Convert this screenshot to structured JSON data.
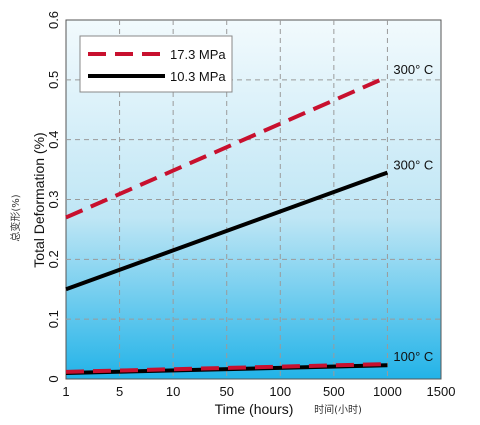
{
  "chart_data": {
    "type": "line",
    "xlabel": "Time (hours)",
    "xlabel_cn": "时间(小时)",
    "ylabel": "Total Deformation (%)",
    "ylabel_cn": "总变形(%)",
    "x_ticks": [
      "1",
      "5",
      "10",
      "50",
      "100",
      "500",
      "1000",
      "1500"
    ],
    "y_ticks": [
      "0",
      "0.1",
      "0.2",
      "0.3",
      "0.4",
      "0.5",
      "0.6"
    ],
    "ylim": [
      0,
      0.6
    ],
    "grid": true,
    "legend_position": "top-left",
    "legend": [
      {
        "label": "17.3 MPa",
        "color": "#c8102e",
        "style": "dashed"
      },
      {
        "label": "10.3 MPa",
        "color": "#000000",
        "style": "solid"
      }
    ],
    "series": [
      {
        "name": "17.3 MPa",
        "temperature": "300° C",
        "color": "#c8102e",
        "style": "dashed",
        "x": [
          "1",
          "1000"
        ],
        "y": [
          0.27,
          0.505
        ]
      },
      {
        "name": "10.3 MPa",
        "temperature": "300° C",
        "color": "#000000",
        "style": "solid",
        "x": [
          "1",
          "1000"
        ],
        "y": [
          0.15,
          0.345
        ]
      },
      {
        "name": "10.3 MPa",
        "temperature": "100° C",
        "color": "#000000",
        "style": "solid",
        "x": [
          "1",
          "1000"
        ],
        "y": [
          0.01,
          0.023
        ]
      },
      {
        "name": "17.3 MPa",
        "temperature": "100° C",
        "color": "#c8102e",
        "style": "dashed",
        "x": [
          "1",
          "1000"
        ],
        "y": [
          0.012,
          0.025
        ]
      }
    ],
    "annotations": [
      "300° C",
      "300° C",
      "100° C"
    ]
  }
}
